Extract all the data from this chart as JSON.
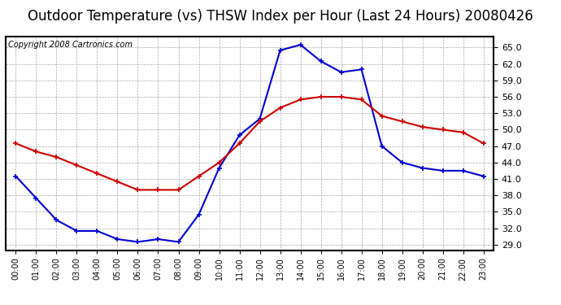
{
  "title": "Outdoor Temperature (vs) THSW Index per Hour (Last 24 Hours) 20080426",
  "copyright": "Copyright 2008 Cartronics.com",
  "hours": [
    "00:00",
    "01:00",
    "02:00",
    "03:00",
    "04:00",
    "05:00",
    "06:00",
    "07:00",
    "08:00",
    "09:00",
    "10:00",
    "11:00",
    "12:00",
    "13:00",
    "14:00",
    "15:00",
    "16:00",
    "17:00",
    "18:00",
    "19:00",
    "20:00",
    "21:00",
    "22:00",
    "23:00"
  ],
  "temp_red": [
    47.5,
    46.0,
    45.0,
    43.5,
    42.0,
    40.5,
    39.0,
    39.0,
    39.0,
    41.5,
    44.0,
    47.5,
    51.5,
    54.0,
    55.5,
    56.0,
    56.0,
    55.5,
    52.5,
    51.5,
    50.5,
    50.0,
    49.5,
    47.5
  ],
  "thsw_blue": [
    41.5,
    37.5,
    33.5,
    31.5,
    31.5,
    30.0,
    29.5,
    30.0,
    29.5,
    34.5,
    43.0,
    49.0,
    52.0,
    64.5,
    65.5,
    62.5,
    60.5,
    61.0,
    47.0,
    44.0,
    43.0,
    42.5,
    42.5,
    41.5
  ],
  "ylim": [
    28.0,
    67.0
  ],
  "yticks": [
    29.0,
    32.0,
    35.0,
    38.0,
    41.0,
    44.0,
    47.0,
    50.0,
    53.0,
    56.0,
    59.0,
    62.0,
    65.0
  ],
  "red_color": "#cc0000",
  "blue_color": "#0000cc",
  "grid_color": "#aaaaaa",
  "bg_color": "#ffffff",
  "plot_bg": "#ffffff",
  "title_fontsize": 12,
  "copyright_fontsize": 7
}
